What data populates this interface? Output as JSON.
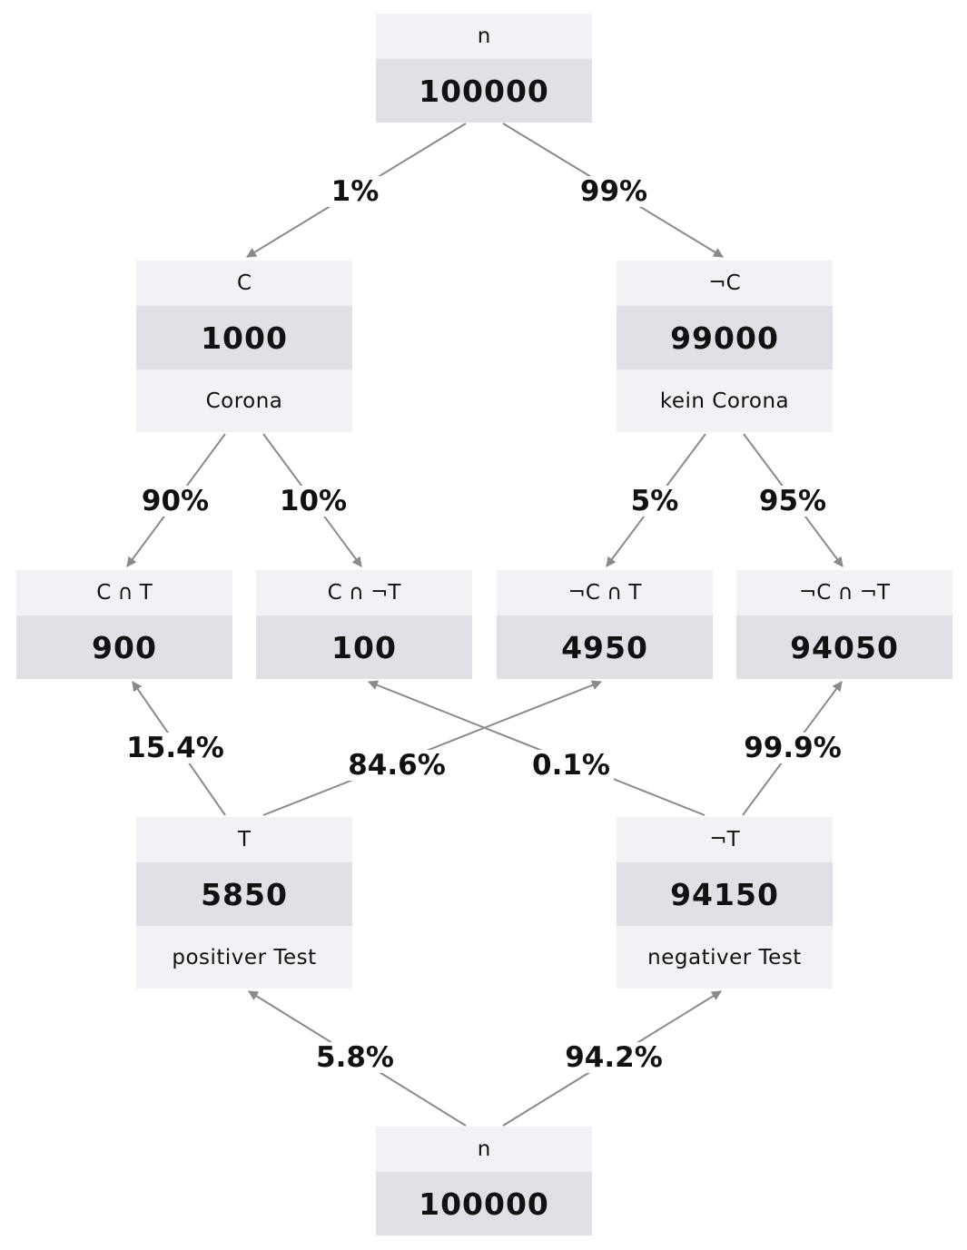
{
  "nodes": {
    "n_top": {
      "label": "n",
      "value": "100000"
    },
    "c": {
      "label": "C",
      "value": "1000",
      "caption": "Corona"
    },
    "not_c": {
      "label": "¬C",
      "value": "99000",
      "caption": "kein Corona"
    },
    "c_t": {
      "label": "C ∩ T",
      "value": "900"
    },
    "c_nt": {
      "label": "C ∩ ¬T",
      "value": "100"
    },
    "nc_t": {
      "label": "¬C ∩ T",
      "value": "4950"
    },
    "nc_nt": {
      "label": "¬C ∩ ¬T",
      "value": "94050"
    },
    "t": {
      "label": "T",
      "value": "5850",
      "caption": "positiver Test"
    },
    "not_t": {
      "label": "¬T",
      "value": "94150",
      "caption": "negativer Test"
    },
    "n_bottom": {
      "label": "n",
      "value": "100000"
    }
  },
  "edges": [
    {
      "id": "n_c",
      "label": "1%"
    },
    {
      "id": "n_nc",
      "label": "99%"
    },
    {
      "id": "c_ct",
      "label": "90%"
    },
    {
      "id": "c_cnt",
      "label": "10%"
    },
    {
      "id": "nc_nct",
      "label": "5%"
    },
    {
      "id": "nc_ncnt",
      "label": "95%"
    },
    {
      "id": "t_ct",
      "label": "15.4%"
    },
    {
      "id": "t_nct",
      "label": "84.6%"
    },
    {
      "id": "nt_cnt",
      "label": "0.1%"
    },
    {
      "id": "nt_ncnt",
      "label": "99.9%"
    },
    {
      "id": "n_t",
      "label": "5.8%"
    },
    {
      "id": "n_nt",
      "label": "94.2%"
    }
  ],
  "colors": {
    "edge": "#8a8a8a",
    "header_bg": "#f2f2f6",
    "value_bg": "#e0e0e6"
  }
}
